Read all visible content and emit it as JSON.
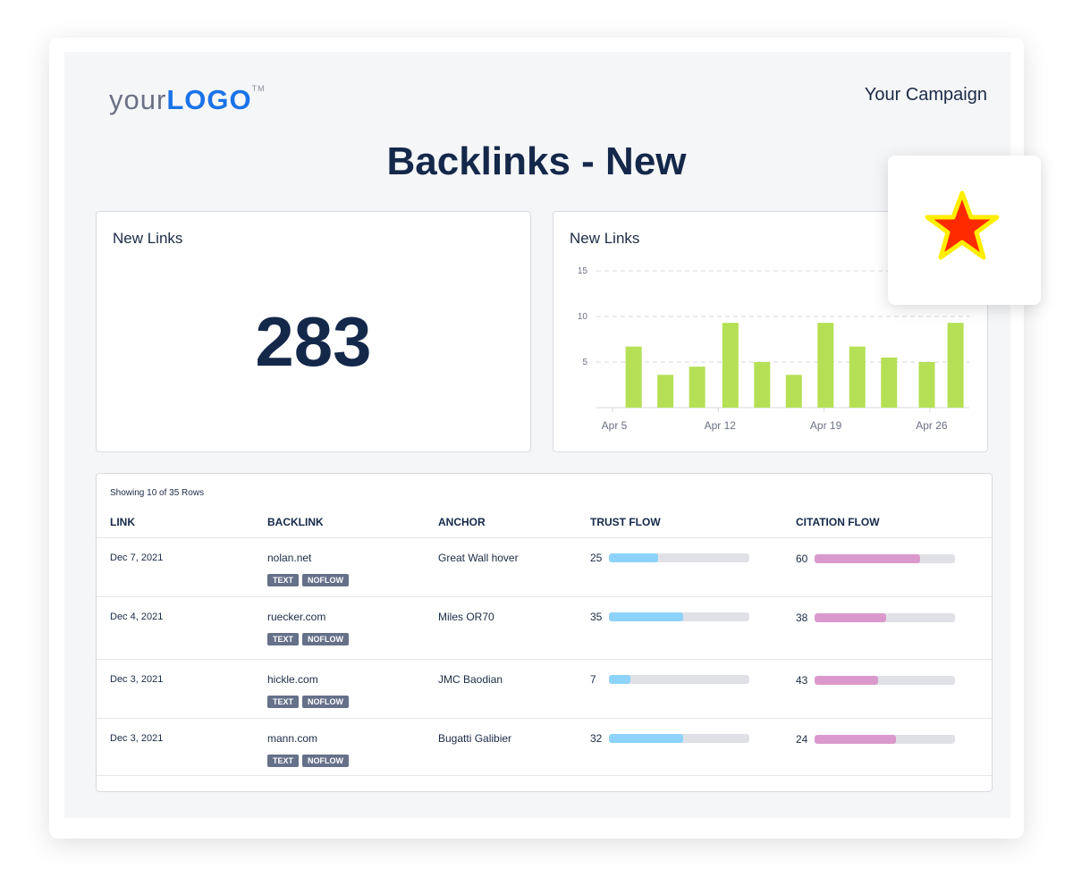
{
  "header": {
    "logo_prefix": "your",
    "logo_main": "LOGO",
    "logo_tm": "TM",
    "campaign": "Your Campaign",
    "title": "Backlinks - New"
  },
  "kpi": {
    "title": "New Links",
    "value": "283"
  },
  "chart_data": {
    "type": "bar",
    "title": "New Links",
    "x_days": [
      6.4,
      8.5,
      10.6,
      12.8,
      14.9,
      17,
      19.1,
      21.2,
      23.3,
      25.8,
      27.7
    ],
    "values": [
      6.7,
      3.6,
      4.5,
      9.3,
      5,
      3.6,
      9.3,
      6.7,
      5.5,
      5,
      9.3
    ],
    "xticks": [
      {
        "day": 5,
        "label": "Apr 5"
      },
      {
        "day": 12,
        "label": "Apr 12"
      },
      {
        "day": 19,
        "label": "Apr 19"
      },
      {
        "day": 26,
        "label": "Apr 26"
      }
    ],
    "yticks": [
      5,
      10,
      15
    ],
    "ylim": [
      0,
      15
    ],
    "color": "#b5e055",
    "grid": true
  },
  "table": {
    "showing": "Showing 10 of 35 Rows",
    "headers": [
      "LINK",
      "BACKLINK",
      "ANCHOR",
      "TRUST FLOW",
      "CITATION FLOW"
    ],
    "rows": [
      {
        "date": "Dec 7, 2021",
        "backlink": "nolan.net",
        "tags": [
          "TEXT",
          "NOFLOW"
        ],
        "anchor": "Great Wall hover",
        "trust": "25",
        "trust_fill": 0.35,
        "citation": "60",
        "citation_fill": 0.75
      },
      {
        "date": "Dec 4, 2021",
        "backlink": "ruecker.com",
        "tags": [
          "TEXT",
          "NOFLOW"
        ],
        "anchor": "Miles OR70",
        "trust": "35",
        "trust_fill": 0.53,
        "citation": "38",
        "citation_fill": 0.51
      },
      {
        "date": "Dec 3, 2021",
        "backlink": "hickle.com",
        "tags": [
          "TEXT",
          "NOFLOW"
        ],
        "anchor": "JMC Baodian",
        "trust": "7",
        "trust_fill": 0.15,
        "citation": "43",
        "citation_fill": 0.45
      },
      {
        "date": "Dec 3, 2021",
        "backlink": "mann.com",
        "tags": [
          "TEXT",
          "NOFLOW"
        ],
        "anchor": "Bugatti Galibier",
        "trust": "32",
        "trust_fill": 0.53,
        "citation": "24",
        "citation_fill": 0.58
      }
    ],
    "trust_color": "#8dd3fb",
    "citation_color": "#da99cc"
  }
}
